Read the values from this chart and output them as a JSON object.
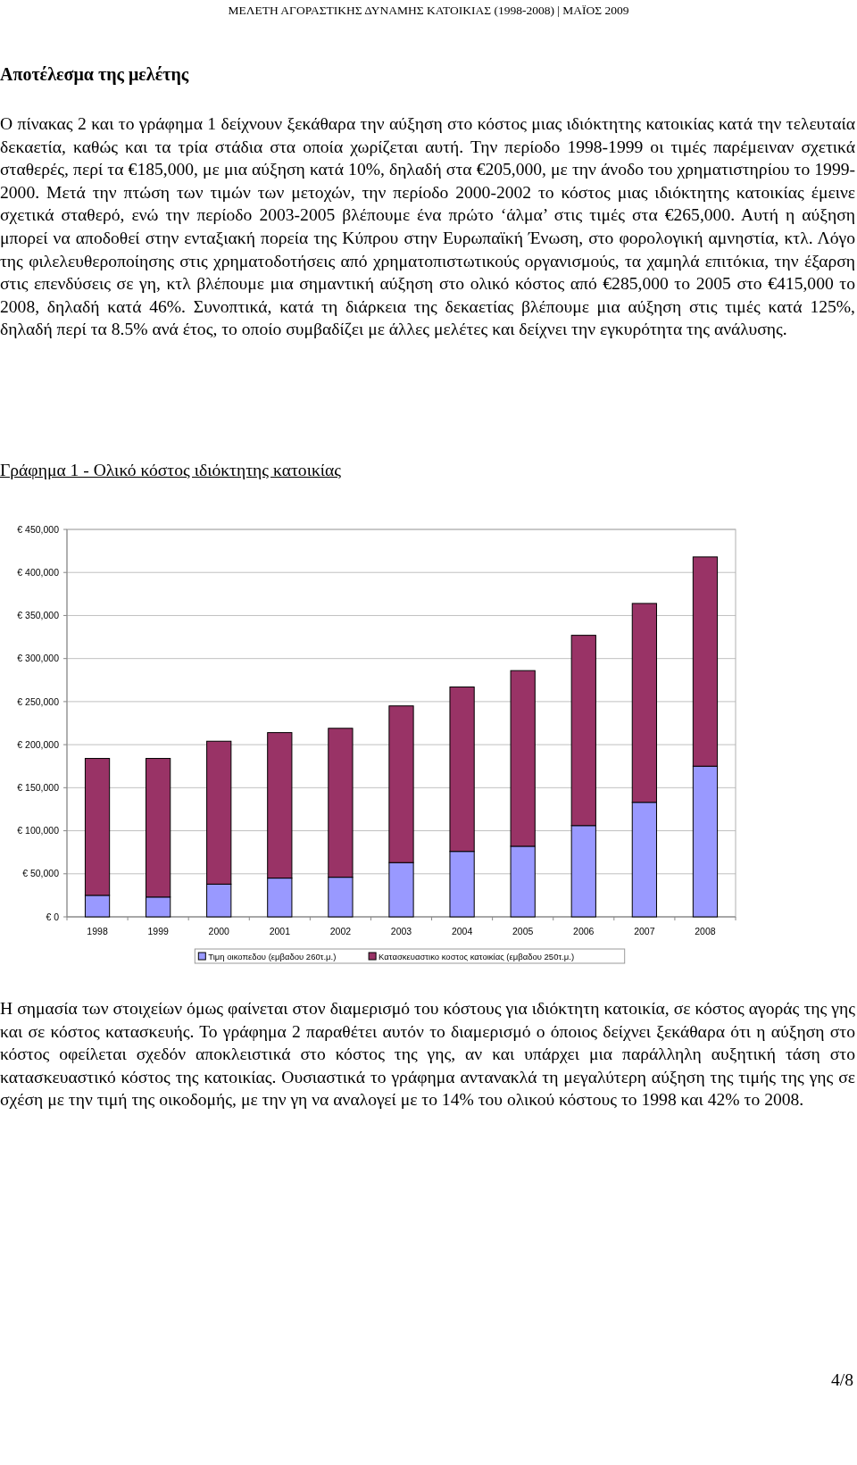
{
  "chart_data": {
    "type": "bar",
    "title": "Γράφημα 1 - Ολικό κόστος ιδιόκτητης κατοικίας",
    "categories": [
      "1998",
      "1999",
      "2000",
      "2001",
      "2002",
      "2003",
      "2004",
      "2005",
      "2006",
      "2007",
      "2008"
    ],
    "stacked": true,
    "series": [
      {
        "name": "Τιμη οικοπεδου (εμβαδου 260τ.μ.)",
        "color": "#9999ff",
        "values": [
          25000,
          23000,
          38000,
          45000,
          46000,
          63000,
          76000,
          82000,
          106000,
          133000,
          175000
        ]
      },
      {
        "name": "Κατασκευαστικο κοστος κατοικίας (εμβαδου 250τ.μ.)",
        "color": "#993366",
        "values": [
          159000,
          161000,
          166000,
          169000,
          173000,
          182000,
          191000,
          204000,
          221000,
          231000,
          243000
        ]
      }
    ],
    "ylim": [
      0,
      450000
    ],
    "yticks": [
      {
        "value": 0,
        "label": "€ 0"
      },
      {
        "value": 50000,
        "label": "€ 50,000"
      },
      {
        "value": 100000,
        "label": "€ 100,000"
      },
      {
        "value": 150000,
        "label": "€ 150,000"
      },
      {
        "value": 200000,
        "label": "€ 200,000"
      },
      {
        "value": 250000,
        "label": "€ 250,000"
      },
      {
        "value": 300000,
        "label": "€ 300,000"
      },
      {
        "value": 350000,
        "label": "€ 350,000"
      },
      {
        "value": 400000,
        "label": "€ 400,000"
      },
      {
        "value": 450000,
        "label": "€ 450,000"
      }
    ],
    "grid": "y",
    "legend": "bottom",
    "annotations": [
      "ΜΕΛΕΤΗ ΑΓΟΡΑΣΤΙΚΗΣ ΔΥΝΑΜΗΣ ΚΑΤΟΙΚΙΑΣ (1998-2008) | ΜΑΪΟΣ 2009",
      "Αποτέλεσμα της μελέτης",
      "Ο πίνακας 2 και το γράφημα 1 δείχνουν ξεκάθαρα την αύξηση στο κόστος μιας ιδιόκτητης κατοικίας κατά την τελευταία δεκαετία, καθώς και τα τρία στάδια στα οποία χωρίζεται αυτή. Την περίοδο 1998-1999 οι τιμές παρέμειναν σχετικά σταθερές, περί τα €185,000, με μια αύξηση κατά 10%, δηλαδή στα €205,000, με την άνοδο του χρηματιστηρίου το 1999-2000. Μετά την πτώση των τιμών των μετοχών, την περίοδο 2000-2002 το κόστος μιας ιδιόκτητης κατοικίας έμεινε σχετικά σταθερό, ενώ την περίοδο 2003-2005 βλέπουμε ένα πρώτο ‘άλμα’ στις τιμές στα €265,000. Αυτή η αύξηση μπορεί να αποδοθεί στην ενταξιακή πορεία της Κύπρου στην Ευρωπαϊκή Ένωση, στο φορολογική αμνηστία, κτλ. Λόγο της φιλελευθεροποίησης στις χρηματοδοτήσεις από χρηματοπιστωτικούς οργανισμούς, τα χαμηλά επιτόκια, την έξαρση στις επενδύσεις σε γη, κτλ βλέπουμε μια σημαντική αύξηση στο ολικό κόστος από €285,000 το 2005 στο €415,000 το 2008, δηλαδή κατά 46%. Συνοπτικά, κατά τη διάρκεια της δεκαετίας βλέπουμε μια αύξηση στις τιμές κατά 125%, δηλαδή περί τα 8.5% ανά έτος, το οποίο συμβαδίζει με άλλες μελέτες και δείχνει την εγκυρότητα της ανάλυσης.",
      "Η σημασία των στοιχείων όμως φαίνεται στον διαμερισμό του κόστους για ιδιόκτητη κατοικία, σε κόστος αγοράς της γης και σε κόστος κατασκευής. Το γράφημα 2 παραθέτει αυτόν το διαμερισμό ο όποιος δείχνει ξεκάθαρα ότι η αύξηση στο κόστος οφείλεται σχεδόν αποκλειστικά στο κόστος της γης, αν και υπάρχει μια παράλληλη αυξητική τάση στο κατασκευαστικό κόστος της κατοικίας. Ουσιαστικά το γράφημα αντανακλά τη μεγαλύτερη αύξηση της τιμής της γης σε σχέση με την τιμή της οικοδομής, με την γη να αναλογεί με το 14% του ολικού κόστους το 1998 και 42% το 2008.",
      "4/8"
    ]
  }
}
